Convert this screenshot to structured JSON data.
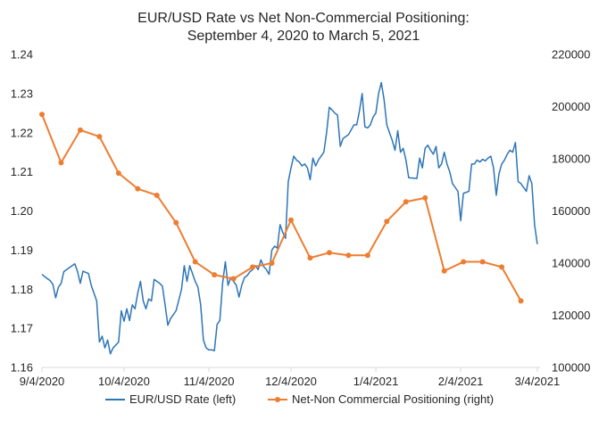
{
  "chart_data": {
    "type": "line",
    "title": "EUR/USD Rate vs Net Non-Commercial Positioning:",
    "subtitle": "September 4, 2020 to March  5, 2021",
    "x_tick_labels": [
      "9/4/2020",
      "10/4/2020",
      "11/4/2020",
      "12/4/2020",
      "1/4/2021",
      "2/4/2021",
      "3/4/2021"
    ],
    "x_ticks": [
      "2020-09-04",
      "2020-10-04",
      "2020-11-04",
      "2020-12-04",
      "2021-01-04",
      "2021-02-04",
      "2021-03-04"
    ],
    "xlim": [
      "2020-09-04",
      "2021-03-05"
    ],
    "y_left": {
      "ylim": [
        1.16,
        1.24
      ],
      "ticks": [
        "1.16",
        "1.17",
        "1.18",
        "1.19",
        "1.20",
        "1.21",
        "1.22",
        "1.23",
        "1.24"
      ]
    },
    "y_right": {
      "ylim": [
        100000,
        220000
      ],
      "ticks": [
        "100000",
        "120000",
        "140000",
        "160000",
        "180000",
        "200000",
        "220000"
      ]
    },
    "grid": false,
    "legend_position": "bottom",
    "series": [
      {
        "name": "EUR/USD Rate (left)",
        "axis": "left",
        "color": "#2e75b6",
        "marker": "none",
        "points": [
          [
            "2020-09-04",
            1.1838
          ],
          [
            "2020-09-05",
            1.1832
          ],
          [
            "2020-09-07",
            1.1822
          ],
          [
            "2020-09-08",
            1.1812
          ],
          [
            "2020-09-09",
            1.1778
          ],
          [
            "2020-09-10",
            1.1805
          ],
          [
            "2020-09-11",
            1.1815
          ],
          [
            "2020-09-12",
            1.1845
          ],
          [
            "2020-09-14",
            1.1855
          ],
          [
            "2020-09-16",
            1.1865
          ],
          [
            "2020-09-17",
            1.1845
          ],
          [
            "2020-09-18",
            1.1815
          ],
          [
            "2020-09-19",
            1.1846
          ],
          [
            "2020-09-21",
            1.184
          ],
          [
            "2020-09-22",
            1.181
          ],
          [
            "2020-09-24",
            1.177
          ],
          [
            "2020-09-25",
            1.1665
          ],
          [
            "2020-09-26",
            1.168
          ],
          [
            "2020-09-27",
            1.165
          ],
          [
            "2020-09-28",
            1.167
          ],
          [
            "2020-09-29",
            1.1635
          ],
          [
            "2020-09-30",
            1.165
          ],
          [
            "2020-10-02",
            1.1665
          ],
          [
            "2020-10-03",
            1.1745
          ],
          [
            "2020-10-04",
            1.1718
          ],
          [
            "2020-10-05",
            1.175
          ],
          [
            "2020-10-06",
            1.172
          ],
          [
            "2020-10-07",
            1.176
          ],
          [
            "2020-10-08",
            1.175
          ],
          [
            "2020-10-09",
            1.179
          ],
          [
            "2020-10-10",
            1.182
          ],
          [
            "2020-10-11",
            1.177
          ],
          [
            "2020-10-12",
            1.175
          ],
          [
            "2020-10-13",
            1.1775
          ],
          [
            "2020-10-14",
            1.177
          ],
          [
            "2020-10-15",
            1.1825
          ],
          [
            "2020-10-16",
            1.182
          ],
          [
            "2020-10-17",
            1.1815
          ],
          [
            "2020-10-18",
            1.1808
          ],
          [
            "2020-10-19",
            1.176
          ],
          [
            "2020-10-20",
            1.1708
          ],
          [
            "2020-10-21",
            1.1725
          ],
          [
            "2020-10-23",
            1.1745
          ],
          [
            "2020-10-25",
            1.18
          ],
          [
            "2020-10-26",
            1.186
          ],
          [
            "2020-10-27",
            1.182
          ],
          [
            "2020-10-28",
            1.186
          ],
          [
            "2020-10-30",
            1.182
          ],
          [
            "2020-10-31",
            1.1805
          ],
          [
            "2020-11-01",
            1.176
          ],
          [
            "2020-11-02",
            1.167
          ],
          [
            "2020-11-03",
            1.165
          ],
          [
            "2020-11-04",
            1.1645
          ],
          [
            "2020-11-05",
            1.1645
          ],
          [
            "2020-11-06",
            1.1643
          ],
          [
            "2020-11-07",
            1.171
          ],
          [
            "2020-11-08",
            1.172
          ],
          [
            "2020-11-09",
            1.1815
          ],
          [
            "2020-11-10",
            1.187
          ],
          [
            "2020-11-11",
            1.181
          ],
          [
            "2020-11-12",
            1.183
          ],
          [
            "2020-11-13",
            1.182
          ],
          [
            "2020-11-14",
            1.181
          ],
          [
            "2020-11-15",
            1.178
          ],
          [
            "2020-11-16",
            1.181
          ],
          [
            "2020-11-17",
            1.183
          ],
          [
            "2020-11-18",
            1.1835
          ],
          [
            "2020-11-19",
            1.1845
          ],
          [
            "2020-11-20",
            1.185
          ],
          [
            "2020-11-21",
            1.186
          ],
          [
            "2020-11-22",
            1.185
          ],
          [
            "2020-11-23",
            1.1875
          ],
          [
            "2020-11-24",
            1.1858
          ],
          [
            "2020-11-25",
            1.185
          ],
          [
            "2020-11-26",
            1.1838
          ],
          [
            "2020-11-27",
            1.19
          ],
          [
            "2020-11-28",
            1.191
          ],
          [
            "2020-11-29",
            1.1905
          ],
          [
            "2020-11-30",
            1.1965
          ],
          [
            "2020-12-01",
            1.1945
          ],
          [
            "2020-12-02",
            1.193
          ],
          [
            "2020-12-03",
            1.2075
          ],
          [
            "2020-12-04",
            1.211
          ],
          [
            "2020-12-05",
            1.214
          ],
          [
            "2020-12-06",
            1.213
          ],
          [
            "2020-12-07",
            1.2125
          ],
          [
            "2020-12-08",
            1.2115
          ],
          [
            "2020-12-09",
            1.212
          ],
          [
            "2020-12-10",
            1.211
          ],
          [
            "2020-12-11",
            1.208
          ],
          [
            "2020-12-12",
            1.2135
          ],
          [
            "2020-12-13",
            1.2115
          ],
          [
            "2020-12-14",
            1.213
          ],
          [
            "2020-12-16",
            1.215
          ],
          [
            "2020-12-17",
            1.22
          ],
          [
            "2020-12-18",
            1.2265
          ],
          [
            "2020-12-19",
            1.2258
          ],
          [
            "2020-12-20",
            1.225
          ],
          [
            "2020-12-21",
            1.2245
          ],
          [
            "2020-12-22",
            1.2165
          ],
          [
            "2020-12-23",
            1.2185
          ],
          [
            "2020-12-24",
            1.219
          ],
          [
            "2020-12-25",
            1.2195
          ],
          [
            "2020-12-27",
            1.222
          ],
          [
            "2020-12-28",
            1.222
          ],
          [
            "2020-12-29",
            1.2255
          ],
          [
            "2020-12-30",
            1.23
          ],
          [
            "2020-12-31",
            1.2215
          ],
          [
            "2021-01-01",
            1.2212
          ],
          [
            "2021-01-02",
            1.222
          ],
          [
            "2021-01-03",
            1.224
          ],
          [
            "2021-01-04",
            1.225
          ],
          [
            "2021-01-05",
            1.23
          ],
          [
            "2021-01-06",
            1.2328
          ],
          [
            "2021-01-07",
            1.2285
          ],
          [
            "2021-01-08",
            1.222
          ],
          [
            "2021-01-09",
            1.22
          ],
          [
            "2021-01-10",
            1.218
          ],
          [
            "2021-01-11",
            1.2155
          ],
          [
            "2021-01-12",
            1.2205
          ],
          [
            "2021-01-13",
            1.215
          ],
          [
            "2021-01-14",
            1.216
          ],
          [
            "2021-01-15",
            1.213
          ],
          [
            "2021-01-16",
            1.2085
          ],
          [
            "2021-01-19",
            1.2083
          ],
          [
            "2021-01-20",
            1.2135
          ],
          [
            "2021-01-21",
            1.211
          ],
          [
            "2021-01-22",
            1.216
          ],
          [
            "2021-01-23",
            1.2168
          ],
          [
            "2021-01-24",
            1.2155
          ],
          [
            "2021-01-25",
            1.2145
          ],
          [
            "2021-01-26",
            1.2165
          ],
          [
            "2021-01-27",
            1.211
          ],
          [
            "2021-01-28",
            1.212
          ],
          [
            "2021-01-29",
            1.215
          ],
          [
            "2021-01-30",
            1.212
          ],
          [
            "2021-01-31",
            1.21
          ],
          [
            "2021-02-01",
            1.207
          ],
          [
            "2021-02-03",
            1.205
          ],
          [
            "2021-02-04",
            1.1975
          ],
          [
            "2021-02-05",
            1.2045
          ],
          [
            "2021-02-07",
            1.205
          ],
          [
            "2021-02-08",
            1.212
          ],
          [
            "2021-02-09",
            1.212
          ],
          [
            "2021-02-10",
            1.213
          ],
          [
            "2021-02-11",
            1.2125
          ],
          [
            "2021-02-12",
            1.2132
          ],
          [
            "2021-02-13",
            1.2128
          ],
          [
            "2021-02-14",
            1.2135
          ],
          [
            "2021-02-15",
            1.214
          ],
          [
            "2021-02-16",
            1.211
          ],
          [
            "2021-02-17",
            1.204
          ],
          [
            "2021-02-18",
            1.2095
          ],
          [
            "2021-02-19",
            1.212
          ],
          [
            "2021-02-20",
            1.213
          ],
          [
            "2021-02-21",
            1.2145
          ],
          [
            "2021-02-22",
            1.2155
          ],
          [
            "2021-02-23",
            1.215
          ],
          [
            "2021-02-24",
            1.2175
          ],
          [
            "2021-02-25",
            1.2075
          ],
          [
            "2021-02-26",
            1.207
          ],
          [
            "2021-02-27",
            1.206
          ],
          [
            "2021-02-28",
            1.205
          ],
          [
            "2021-03-01",
            1.209
          ],
          [
            "2021-03-02",
            1.207
          ],
          [
            "2021-03-03",
            1.1965
          ],
          [
            "2021-03-04",
            1.1915
          ]
        ]
      },
      {
        "name": "Net-Non Commercial Positioning (right)",
        "axis": "right",
        "color": "#ed7d31",
        "marker": "circle",
        "points": [
          [
            "2020-09-04",
            197000
          ],
          [
            "2020-09-11",
            178500
          ],
          [
            "2020-09-18",
            191000
          ],
          [
            "2020-09-25",
            188500
          ],
          [
            "2020-10-02",
            174500
          ],
          [
            "2020-10-09",
            168500
          ],
          [
            "2020-10-16",
            166000
          ],
          [
            "2020-10-23",
            155500
          ],
          [
            "2020-10-30",
            140500
          ],
          [
            "2020-11-06",
            135500
          ],
          [
            "2020-11-13",
            134000
          ],
          [
            "2020-11-20",
            138500
          ],
          [
            "2020-11-27",
            140000
          ],
          [
            "2020-12-04",
            156500
          ],
          [
            "2020-12-11",
            142000
          ],
          [
            "2020-12-18",
            144000
          ],
          [
            "2020-12-25",
            143000
          ],
          [
            "2021-01-01",
            143000
          ],
          [
            "2021-01-08",
            156000
          ],
          [
            "2021-01-15",
            163500
          ],
          [
            "2021-01-22",
            165000
          ],
          [
            "2021-01-29",
            137000
          ],
          [
            "2021-02-05",
            140500
          ],
          [
            "2021-02-12",
            140500
          ],
          [
            "2021-02-19",
            138500
          ],
          [
            "2021-02-26",
            125500
          ]
        ]
      }
    ]
  }
}
